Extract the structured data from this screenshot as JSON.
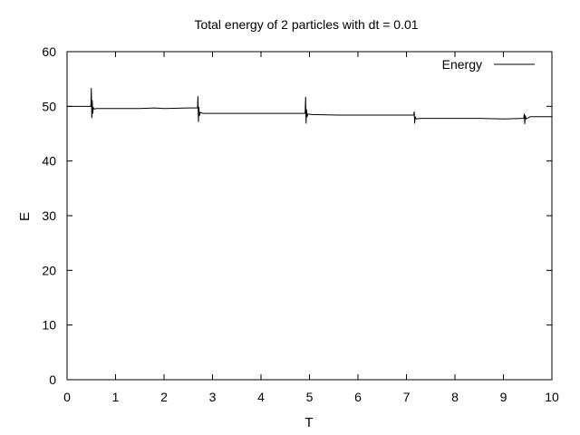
{
  "chart_data": {
    "type": "line",
    "title": "Total energy of 2 particles with dt = 0.01",
    "xlabel": "T",
    "ylabel": "E",
    "xlim": [
      0,
      10
    ],
    "ylim": [
      0,
      60
    ],
    "xticks": [
      0,
      1,
      2,
      3,
      4,
      5,
      6,
      7,
      8,
      9,
      10
    ],
    "yticks": [
      0,
      10,
      20,
      30,
      40,
      50,
      60
    ],
    "grid": false,
    "legend_position": "top-right",
    "series": [
      {
        "name": "Energy",
        "color": "#000000",
        "x": [
          0,
          0.49,
          0.5,
          0.51,
          0.52,
          0.53,
          0.54,
          0.56,
          0.6,
          1.0,
          1.5,
          1.8,
          2.0,
          2.5,
          2.69,
          2.7,
          2.71,
          2.72,
          2.73,
          2.75,
          2.8,
          3.2,
          3.8,
          4.5,
          4.91,
          4.92,
          4.93,
          4.94,
          4.95,
          4.97,
          5.05,
          5.6,
          6.0,
          6.5,
          7.15,
          7.16,
          7.17,
          7.18,
          7.2,
          7.3,
          8.0,
          8.5,
          9.0,
          9.42,
          9.43,
          9.44,
          9.45,
          9.47,
          9.55,
          10
        ],
        "y": [
          50.0,
          50.0,
          53.3,
          47.9,
          51.0,
          48.7,
          49.8,
          49.5,
          49.6,
          49.6,
          49.6,
          49.7,
          49.6,
          49.7,
          49.7,
          51.8,
          47.2,
          49.8,
          48.3,
          48.9,
          48.7,
          48.7,
          48.7,
          48.7,
          48.7,
          51.7,
          46.9,
          49.4,
          48.1,
          48.6,
          48.5,
          48.4,
          48.4,
          48.4,
          48.4,
          49.0,
          46.9,
          48.1,
          47.7,
          47.8,
          47.8,
          47.8,
          47.7,
          47.8,
          48.6,
          46.8,
          48.3,
          47.7,
          48.1,
          48.1
        ]
      }
    ]
  }
}
